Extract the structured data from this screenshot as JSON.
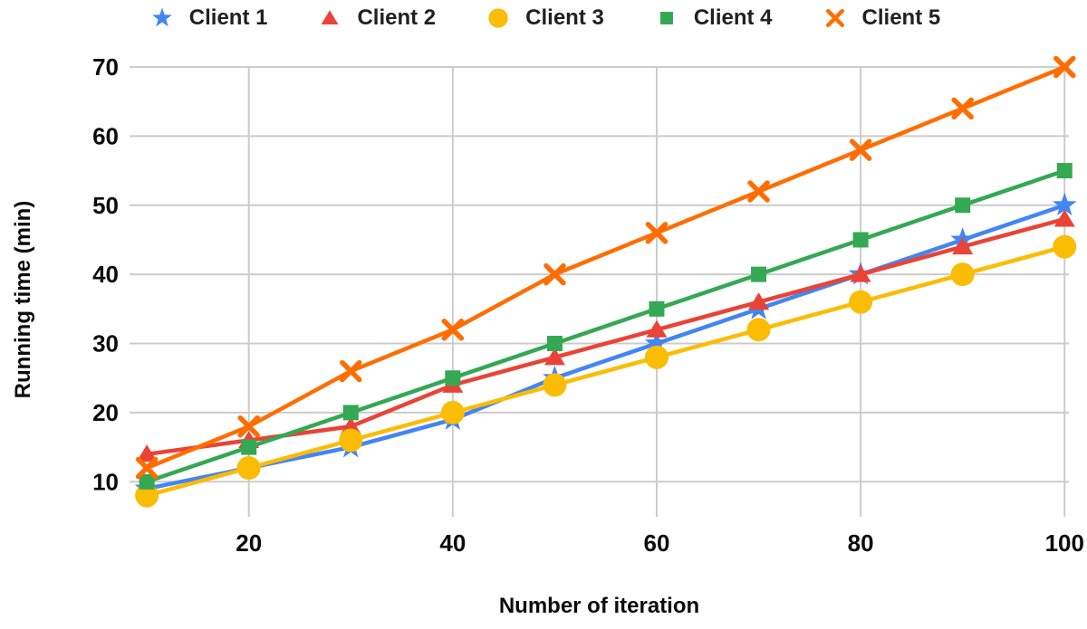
{
  "chart_data": {
    "type": "line",
    "title": "",
    "xlabel": "Number of iteration",
    "ylabel": "Running time (min)",
    "x": [
      10,
      20,
      30,
      40,
      50,
      60,
      70,
      80,
      90,
      100
    ],
    "x_ticks": [
      20,
      40,
      60,
      80,
      100
    ],
    "y_ticks": [
      10,
      20,
      30,
      40,
      50,
      60,
      70
    ],
    "xlim": [
      8.3,
      100.42
    ],
    "ylim": [
      5,
      70
    ],
    "grid": true,
    "legend_position": "top",
    "grid_color": "#cccccc",
    "text_color": "#0b0b0b",
    "series": [
      {
        "name": "Client 1",
        "marker": "star",
        "color": "#4285F4",
        "values": [
          9,
          12,
          15,
          19,
          25,
          30,
          35,
          40,
          45,
          50
        ]
      },
      {
        "name": "Client 2",
        "marker": "triangle",
        "color": "#EA4335",
        "values": [
          14,
          16,
          18,
          24,
          28,
          32,
          36,
          40,
          44,
          48
        ]
      },
      {
        "name": "Client 3",
        "marker": "circle",
        "color": "#FBBC04",
        "values": [
          8,
          12,
          16,
          20,
          24,
          28,
          32,
          36,
          40,
          44
        ]
      },
      {
        "name": "Client 4",
        "marker": "square",
        "color": "#34A853",
        "values": [
          10,
          15,
          20,
          25,
          30,
          35,
          40,
          45,
          50,
          55
        ]
      },
      {
        "name": "Client 5",
        "marker": "x",
        "color": "#FF6D01",
        "values": [
          12,
          18,
          26,
          32,
          40,
          46,
          52,
          58,
          64,
          70
        ]
      }
    ]
  }
}
